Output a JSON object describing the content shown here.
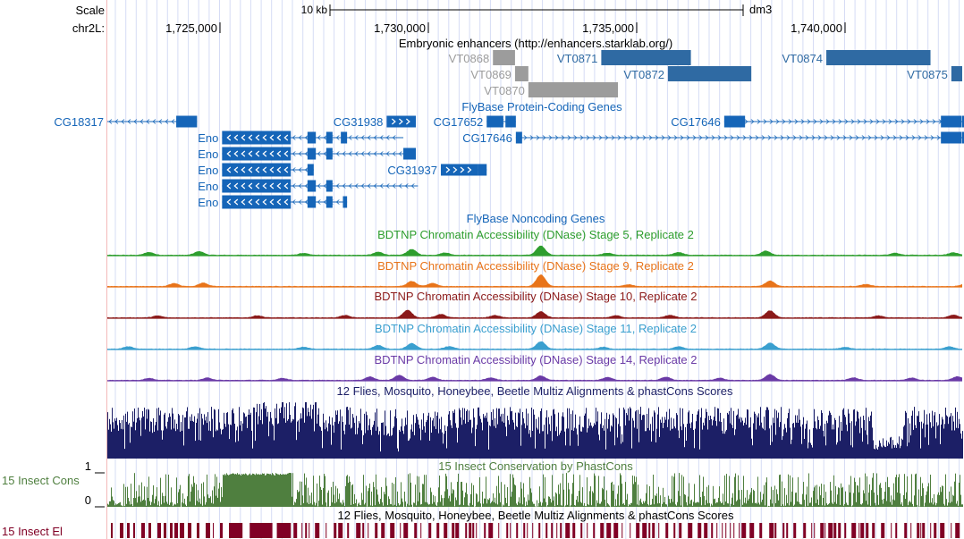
{
  "ruler": {
    "scale_label": "Scale",
    "scale_bar_label": "10 kb",
    "assembly": "dm3",
    "chrom_label": "chr2L:",
    "ticks": [
      {
        "pos": 1725000,
        "label": "1,725,000"
      },
      {
        "pos": 1730000,
        "label": "1,730,000"
      },
      {
        "pos": 1735000,
        "label": "1,735,000"
      },
      {
        "pos": 1740000,
        "label": "1,740,000"
      }
    ]
  },
  "colors": {
    "gene": "#1565b8",
    "enhancer_active": "#2f6aa3",
    "enhancer_inactive": "#9c9c9c",
    "stage5": "#2e9e2e",
    "stage9": "#e8741a",
    "stage10": "#8b1a1a",
    "stage11": "#3a9fcf",
    "stage14": "#6a3aa6",
    "multiz": "#1c1f66",
    "phastcons": "#4f7f3f",
    "elements": "#800025",
    "grid": "#d6dcf5",
    "margin_line": "#f4b9b9"
  },
  "tracks": {
    "enhancers": {
      "title": "Embryonic enhancers (http://enhancers.starklab.org/)",
      "items": [
        {
          "name": "VT0868",
          "start": 1731550,
          "end": 1732080,
          "status": "inactive",
          "row": 0
        },
        {
          "name": "VT0871",
          "start": 1734150,
          "end": 1736300,
          "status": "active",
          "row": 0
        },
        {
          "name": "VT0874",
          "start": 1739550,
          "end": 1742050,
          "status": "active",
          "row": 0
        },
        {
          "name": "VT0869",
          "start": 1732080,
          "end": 1732400,
          "status": "inactive",
          "row": 1
        },
        {
          "name": "VT0872",
          "start": 1735750,
          "end": 1737750,
          "status": "active",
          "row": 1
        },
        {
          "name": "VT0875",
          "start": 1742550,
          "end": 1742900,
          "status": "active",
          "row": 1
        },
        {
          "name": "VT0870",
          "start": 1732400,
          "end": 1734550,
          "status": "inactive",
          "row": 2
        }
      ]
    },
    "genes": {
      "title": "FlyBase Protein-Coding Genes",
      "items": [
        {
          "name": "CG18317",
          "start": 1720800,
          "end": 1724450,
          "strand": "-",
          "row": 0,
          "exons": [
            [
              1723950,
              1724450
            ]
          ]
        },
        {
          "name": "CG31938",
          "start": 1729000,
          "end": 1729700,
          "strand": "+",
          "row": 0,
          "exons": [
            [
              1729000,
              1729700
            ]
          ]
        },
        {
          "name": "CG17652",
          "start": 1731400,
          "end": 1732100,
          "strand": "-",
          "row": 0,
          "exons": [
            [
              1731400,
              1731800
            ],
            [
              1731850,
              1732100
            ]
          ]
        },
        {
          "name": "CG17646",
          "start": 1737100,
          "end": 1743100,
          "strand": "+",
          "row": 0,
          "exons": [
            [
              1737100,
              1737600
            ],
            [
              1742300,
              1742800
            ],
            [
              1742880,
              1743100
            ]
          ]
        },
        {
          "name": "Eno",
          "start": 1725050,
          "end": 1729400,
          "strand": "-",
          "row": 1,
          "exons": [
            [
              1725050,
              1726700
            ],
            [
              1727100,
              1727300
            ],
            [
              1727550,
              1727700
            ],
            [
              1727900,
              1728050
            ]
          ]
        },
        {
          "name": "CG17646",
          "start": 1732100,
          "end": 1743100,
          "strand": "+",
          "row": 1,
          "exons": [
            [
              1732100,
              1732250
            ],
            [
              1742300,
              1742800
            ],
            [
              1742880,
              1743100
            ]
          ]
        },
        {
          "name": "Eno",
          "start": 1725050,
          "end": 1729700,
          "strand": "-",
          "row": 2,
          "exons": [
            [
              1725050,
              1726700
            ],
            [
              1727100,
              1727300
            ],
            [
              1727550,
              1727700
            ],
            [
              1729400,
              1729700
            ]
          ]
        },
        {
          "name": "Eno",
          "start": 1725050,
          "end": 1727250,
          "strand": "-",
          "row": 3,
          "exons": [
            [
              1725050,
              1726700
            ],
            [
              1727100,
              1727250
            ]
          ]
        },
        {
          "name": "CG31937",
          "start": 1730300,
          "end": 1731400,
          "strand": "+",
          "row": 3,
          "exons": [
            [
              1730300,
              1731200
            ],
            [
              1731200,
              1731400
            ]
          ]
        },
        {
          "name": "Eno",
          "start": 1725050,
          "end": 1729750,
          "strand": "-",
          "row": 4,
          "exons": [
            [
              1725050,
              1726700
            ],
            [
              1727100,
              1727300
            ],
            [
              1727550,
              1727700
            ]
          ]
        },
        {
          "name": "Eno",
          "start": 1725050,
          "end": 1728050,
          "strand": "-",
          "row": 5,
          "exons": [
            [
              1725050,
              1726700
            ],
            [
              1727100,
              1727300
            ],
            [
              1727550,
              1727700
            ],
            [
              1727950,
              1728050
            ]
          ]
        }
      ]
    },
    "noncoding": {
      "title": "FlyBase Noncoding Genes"
    },
    "dnase": [
      {
        "title": "BDTNP Chromatin Accessibility (DNase) Stage 5, Replicate 2",
        "color_key": "stage5",
        "peaks": [
          [
            1723300,
            1.2
          ],
          [
            1724500,
            1.6
          ],
          [
            1727000,
            0.8
          ],
          [
            1728800,
            1.3
          ],
          [
            1729600,
            2.5
          ],
          [
            1730400,
            1.0
          ],
          [
            1732700,
            4.0
          ],
          [
            1734300,
            0.9
          ],
          [
            1736000,
            1.2
          ],
          [
            1738100,
            1.8
          ],
          [
            1741200,
            0.9
          ],
          [
            1742600,
            1.1
          ]
        ]
      },
      {
        "title": "BDTNP Chromatin Accessibility (DNase) Stage 9, Replicate 2",
        "color_key": "stage9",
        "peaks": [
          [
            1723900,
            1.3
          ],
          [
            1724600,
            1.5
          ],
          [
            1729600,
            2.2
          ],
          [
            1730100,
            1.4
          ],
          [
            1732700,
            5.0
          ],
          [
            1734800,
            0.8
          ],
          [
            1738200,
            2.4
          ],
          [
            1740500,
            0.9
          ],
          [
            1742900,
            1.2
          ]
        ]
      },
      {
        "title": "BDTNP Chromatin Accessibility (DNase) Stage 10, Replicate 2",
        "color_key": "stage10",
        "peaks": [
          [
            1723500,
            0.8
          ],
          [
            1725900,
            0.9
          ],
          [
            1728000,
            1.0
          ],
          [
            1729500,
            3.2
          ],
          [
            1730300,
            1.5
          ],
          [
            1731600,
            1.0
          ],
          [
            1732700,
            2.6
          ],
          [
            1734500,
            0.9
          ],
          [
            1735800,
            1.1
          ],
          [
            1738200,
            3.0
          ],
          [
            1740800,
            0.8
          ],
          [
            1742600,
            1.2
          ]
        ]
      },
      {
        "title": "BDTNP Chromatin Accessibility (DNase) Stage 11, Replicate 2",
        "color_key": "stage11",
        "peaks": [
          [
            1722800,
            1.0
          ],
          [
            1724400,
            1.0
          ],
          [
            1727000,
            0.8
          ],
          [
            1728800,
            1.6
          ],
          [
            1729600,
            2.4
          ],
          [
            1730500,
            1.1
          ],
          [
            1732700,
            3.2
          ],
          [
            1734200,
            0.8
          ],
          [
            1736000,
            1.0
          ],
          [
            1738200,
            2.6
          ],
          [
            1740000,
            0.8
          ],
          [
            1742500,
            1.0
          ]
        ]
      },
      {
        "title": "BDTNP Chromatin Accessibility (DNase) Stage 14, Replicate 2",
        "color_key": "stage14",
        "peaks": [
          [
            1723300,
            0.9
          ],
          [
            1724700,
            1.0
          ],
          [
            1726500,
            0.9
          ],
          [
            1728600,
            1.5
          ],
          [
            1729300,
            2.2
          ],
          [
            1730100,
            1.3
          ],
          [
            1731500,
            1.1
          ],
          [
            1732700,
            1.9
          ],
          [
            1734300,
            1.3
          ],
          [
            1735700,
            1.4
          ],
          [
            1737000,
            0.9
          ],
          [
            1738200,
            2.5
          ],
          [
            1740200,
            1.1
          ],
          [
            1741600,
            1.0
          ],
          [
            1742700,
            1.6
          ]
        ]
      }
    ],
    "multiz": {
      "title": "12 Flies, Mosquito, Honeybee, Beetle Multiz Alignments & phastCons Scores"
    },
    "phastcons": {
      "title": "15 Insect Conservation by PhastCons",
      "left_label": "15 Insect Cons",
      "y_max_label": "1",
      "y_min_label": "0",
      "block_start": 1725050,
      "block_end": 1726700
    },
    "elements": {
      "title": "12 Flies, Mosquito, Honeybee, Beetle Multiz Alignments & phastCons Scores",
      "left_label": "15 Insect El"
    }
  }
}
